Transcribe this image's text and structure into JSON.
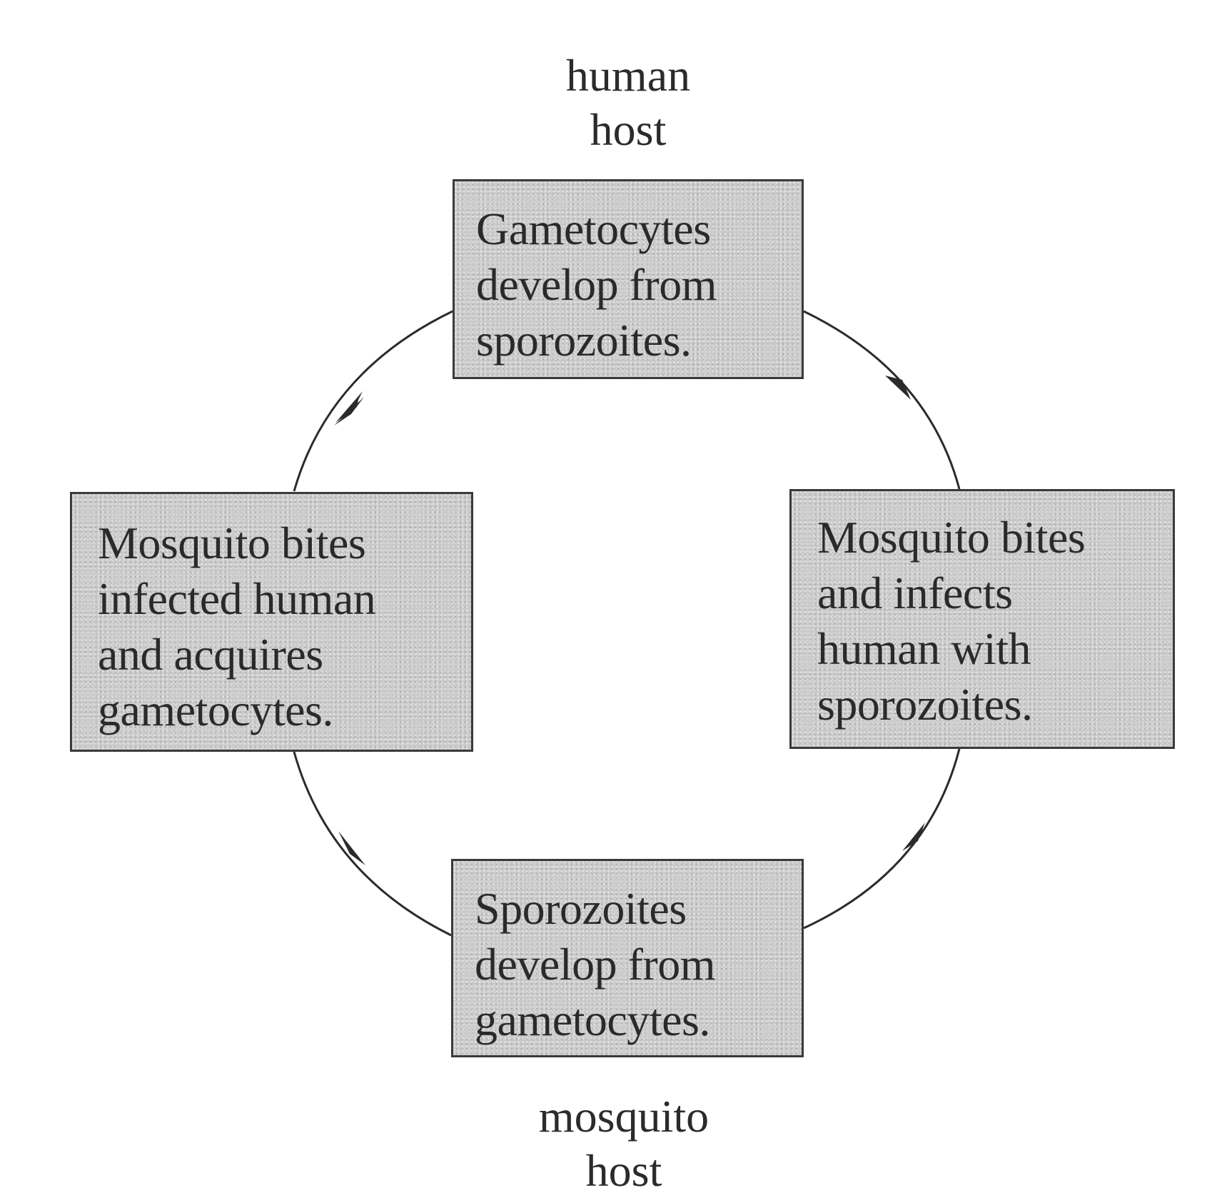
{
  "labels": {
    "top_host": "human\nhost",
    "bottom_host": "mosquito\nhost"
  },
  "stages": {
    "top": "Gametocytes\ndevelop from\nsporozoites.",
    "left": "Mosquito bites\ninfected human\nand acquires\ngametocytes.",
    "right": "Mosquito bites\nand infects\nhuman with\nsporozoites.",
    "bottom": "Sporozoites\ndevelop from\ngametocytes."
  },
  "colors": {
    "box_fill": "#c9c9c9",
    "line": "#2b2b2b"
  }
}
